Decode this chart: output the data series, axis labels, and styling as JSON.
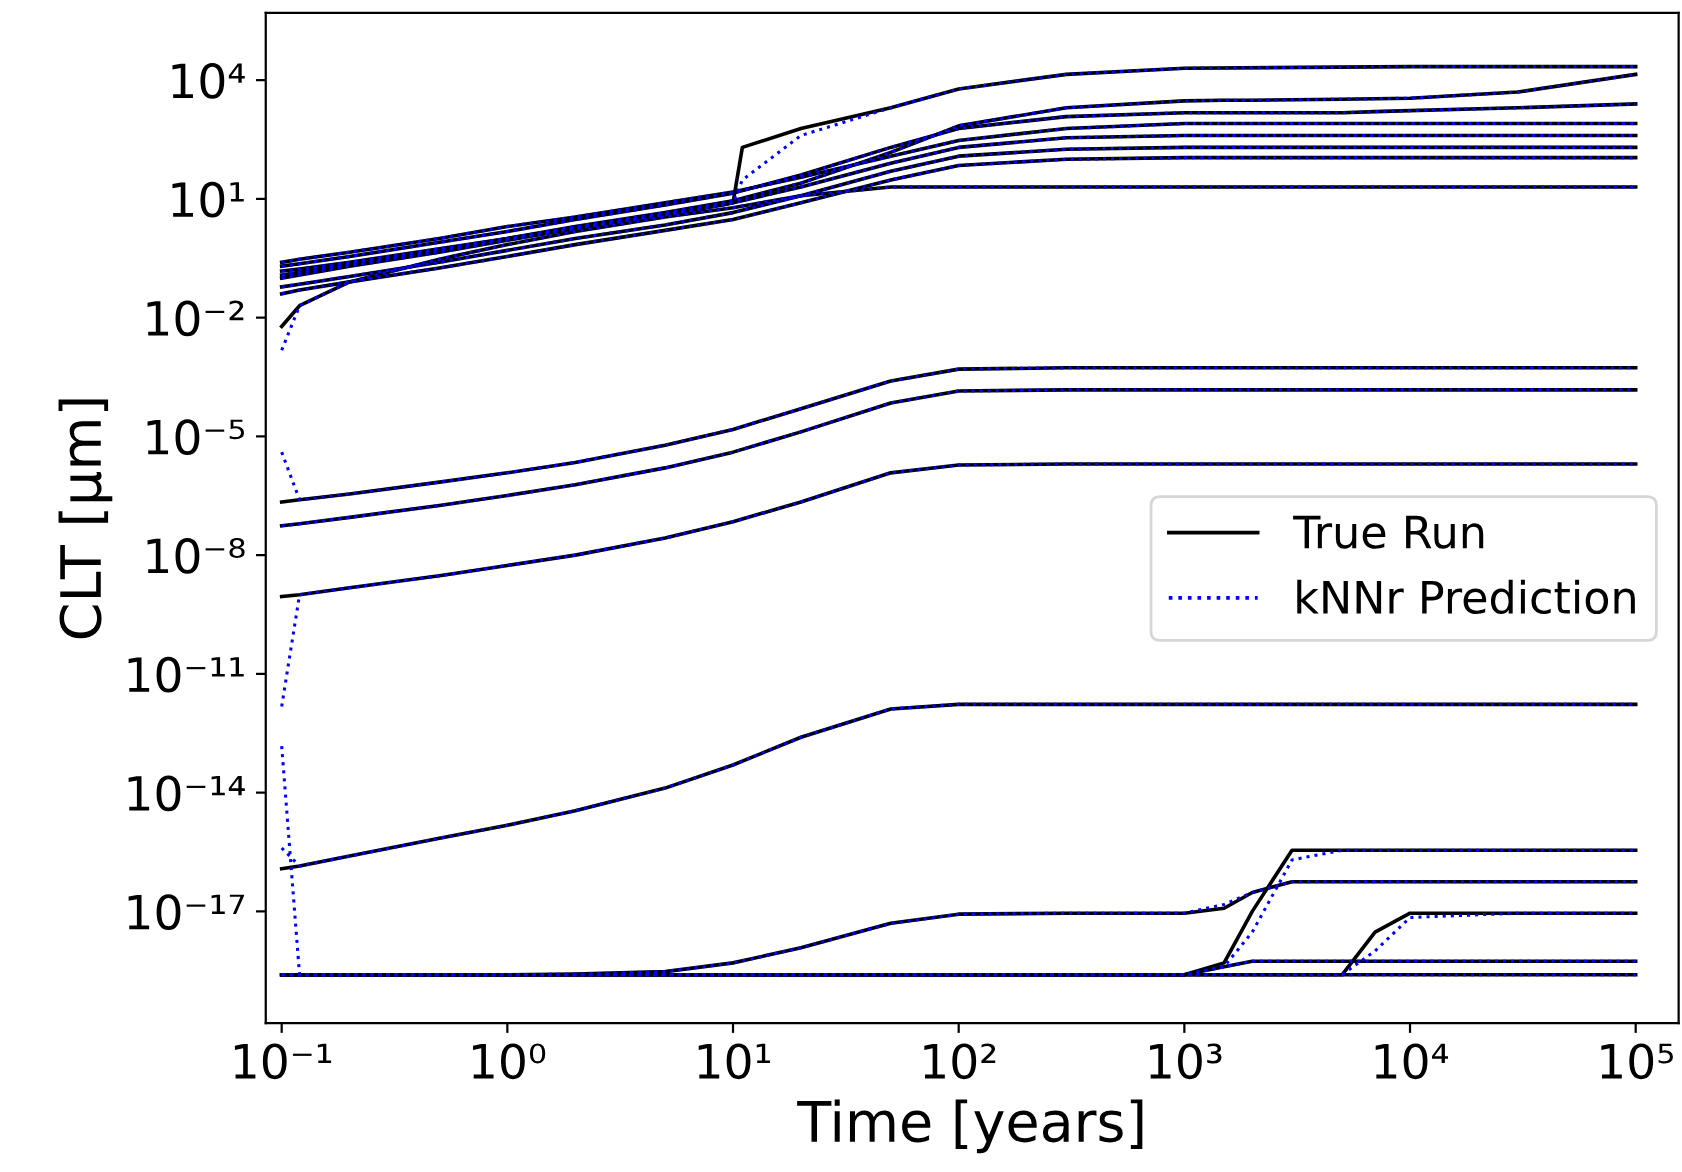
{
  "chart_data": {
    "type": "line",
    "xlabel": "Time [years]",
    "ylabel": "CLT [μm]",
    "log": "xy",
    "xlim": [
      0.085,
      155000
    ],
    "ylim": [
      1.5e-20,
      500000.0
    ],
    "xticks": [
      {
        "value": 0.1,
        "label": "10⁻¹"
      },
      {
        "value": 1,
        "label": "10⁰"
      },
      {
        "value": 10,
        "label": "10¹"
      },
      {
        "value": 100,
        "label": "10²"
      },
      {
        "value": 1000,
        "label": "10³"
      },
      {
        "value": 10000,
        "label": "10⁴"
      },
      {
        "value": 100000,
        "label": "10⁵"
      }
    ],
    "yticks": [
      {
        "value": 1e-17,
        "label": "10⁻¹⁷"
      },
      {
        "value": 1e-14,
        "label": "10⁻¹⁴"
      },
      {
        "value": 1e-11,
        "label": "10⁻¹¹"
      },
      {
        "value": 1e-08,
        "label": "10⁻⁸"
      },
      {
        "value": 1e-05,
        "label": "10⁻⁵"
      },
      {
        "value": 0.01,
        "label": "10⁻²"
      },
      {
        "value": 10,
        "label": "10¹"
      },
      {
        "value": 10000,
        "label": "10⁴"
      }
    ],
    "grid": false,
    "legend": "right",
    "marker": "none",
    "x": [
      0.1,
      0.12,
      0.2,
      0.5,
      1,
      2,
      5,
      10,
      20,
      50,
      100,
      300,
      1000,
      1500,
      2000,
      3000,
      5000,
      7000,
      10000,
      30000,
      100000
    ],
    "series": [
      {
        "name": "True Run",
        "color": "#000000",
        "line_style": "solid",
        "values": [
          0.15,
          0.17,
          0.25,
          0.55,
          1,
          2,
          4.5,
          9,
          25,
          150,
          700,
          2000,
          3000,
          3100,
          3100,
          3200,
          3300,
          3400,
          3500,
          5000,
          14000
        ]
      },
      {
        "color": "#000000",
        "line_style": "solid",
        "x": [
          0.1,
          0.2,
          0.5,
          1,
          2,
          5,
          9,
          10,
          11,
          20,
          50,
          100,
          300,
          1000,
          10000,
          100000
        ],
        "values": [
          0.1,
          0.2,
          0.45,
          0.9,
          1.8,
          4,
          7,
          8,
          200,
          600,
          2000,
          6000,
          14000,
          20000,
          22000,
          22000
        ]
      },
      {
        "color": "#000000",
        "line_style": "solid",
        "values": [
          0.006,
          0.02,
          0.08,
          0.3,
          0.7,
          1.5,
          3.5,
          6,
          12,
          20,
          20,
          20,
          20,
          20,
          20,
          20,
          20,
          20,
          20,
          20,
          20
        ]
      },
      {
        "color": "#000000",
        "line_style": "solid",
        "values": [
          0.25,
          0.3,
          0.45,
          1,
          2,
          3.5,
          8,
          15,
          35,
          120,
          300,
          600,
          800,
          800,
          800,
          800,
          800,
          800,
          800,
          800,
          800
        ]
      },
      {
        "color": "#000000",
        "line_style": "solid",
        "values": [
          0.12,
          0.14,
          0.22,
          0.5,
          1,
          1.8,
          4,
          8,
          20,
          80,
          200,
          350,
          400,
          400,
          400,
          400,
          400,
          400,
          400,
          400,
          400
        ]
      },
      {
        "color": "#000000",
        "line_style": "solid",
        "values": [
          0.06,
          0.07,
          0.11,
          0.25,
          0.5,
          1,
          2.2,
          4.5,
          12,
          50,
          120,
          180,
          200,
          200,
          200,
          200,
          200,
          200,
          200,
          200,
          200
        ]
      },
      {
        "color": "#000000",
        "line_style": "solid",
        "values": [
          0.04,
          0.05,
          0.08,
          0.18,
          0.35,
          0.7,
          1.6,
          3,
          8,
          30,
          70,
          100,
          110,
          110,
          110,
          110,
          110,
          110,
          110,
          110,
          110
        ]
      },
      {
        "color": "#000000",
        "line_style": "solid",
        "values": [
          0.2,
          0.23,
          0.35,
          0.8,
          1.5,
          3,
          7,
          14,
          40,
          200,
          600,
          1200,
          1500,
          1500,
          1500,
          1500,
          1500,
          1600,
          1700,
          2000,
          2500
        ]
      },
      {
        "color": "#000000",
        "line_style": "solid",
        "values": [
          2.2e-07,
          2.5e-07,
          3.5e-07,
          7e-07,
          1.2e-06,
          2.2e-06,
          6e-06,
          1.5e-05,
          5e-05,
          0.00025,
          0.0005,
          0.00054,
          0.00054,
          0.00054,
          0.00054,
          0.00054,
          0.00054,
          0.00054,
          0.00054,
          0.00054,
          0.00054
        ]
      },
      {
        "color": "#000000",
        "line_style": "solid",
        "values": [
          5.5e-08,
          6.2e-08,
          9e-08,
          1.8e-07,
          3.2e-07,
          6e-07,
          1.6e-06,
          4e-06,
          1.3e-05,
          7e-05,
          0.00014,
          0.00015,
          0.00015,
          0.00015,
          0.00015,
          0.00015,
          0.00015,
          0.00015,
          0.00015,
          0.00015,
          0.00015
        ]
      },
      {
        "color": "#000000",
        "line_style": "solid",
        "values": [
          9e-10,
          1e-09,
          1.5e-09,
          3e-09,
          5.5e-09,
          1e-08,
          2.7e-08,
          7e-08,
          2.2e-07,
          1.2e-06,
          1.9e-06,
          2e-06,
          2e-06,
          2e-06,
          2e-06,
          2e-06,
          2e-06,
          2e-06,
          2e-06,
          2e-06,
          2e-06
        ]
      },
      {
        "color": "#000000",
        "line_style": "solid",
        "values": [
          1.2e-16,
          1.4e-16,
          2.5e-16,
          7e-16,
          1.5e-15,
          3.5e-15,
          1.3e-14,
          5e-14,
          2.5e-13,
          1.3e-12,
          1.7e-12,
          1.7e-12,
          1.7e-12,
          1.7e-12,
          1.7e-12,
          1.7e-12,
          1.7e-12,
          1.7e-12,
          1.7e-12,
          1.7e-12,
          1.7e-12
        ]
      },
      {
        "color": "#000000",
        "line_style": "solid",
        "values": [
          2.5e-19,
          2.5e-19,
          2.5e-19,
          2.5e-19,
          2.5e-19,
          2.6e-19,
          3e-19,
          5e-19,
          1.2e-18,
          5e-18,
          8.5e-18,
          9e-18,
          9e-18,
          1.2e-17,
          3e-17,
          5.6e-17,
          5.6e-17,
          5.6e-17,
          5.6e-17,
          5.6e-17,
          5.6e-17
        ]
      },
      {
        "color": "#000000",
        "line_style": "solid",
        "values": [
          2.5e-19,
          2.5e-19,
          2.5e-19,
          2.5e-19,
          2.5e-19,
          2.5e-19,
          2.5e-19,
          2.5e-19,
          2.5e-19,
          2.5e-19,
          2.5e-19,
          2.5e-19,
          2.5e-19,
          5e-19,
          1e-17,
          3.5e-16,
          3.5e-16,
          3.5e-16,
          3.5e-16,
          3.5e-16,
          3.5e-16
        ]
      },
      {
        "color": "#000000",
        "line_style": "solid",
        "values": [
          2.5e-19,
          2.5e-19,
          2.5e-19,
          2.5e-19,
          2.5e-19,
          2.5e-19,
          2.5e-19,
          2.5e-19,
          2.5e-19,
          2.5e-19,
          2.5e-19,
          2.5e-19,
          2.5e-19,
          2.5e-19,
          2.5e-19,
          2.5e-19,
          2.5e-19,
          3e-18,
          9e-18,
          9e-18,
          9e-18
        ]
      },
      {
        "color": "#000000",
        "line_style": "solid",
        "values": [
          2.5e-19,
          2.5e-19,
          2.5e-19,
          2.5e-19,
          2.5e-19,
          2.5e-19,
          2.5e-19,
          2.5e-19,
          2.5e-19,
          2.5e-19,
          2.5e-19,
          2.5e-19,
          2.5e-19,
          4e-19,
          5.5e-19,
          5.5e-19,
          5.5e-19,
          5.5e-19,
          5.5e-19,
          5.5e-19,
          5.5e-19
        ]
      },
      {
        "color": "#000000",
        "line_style": "solid",
        "values": [
          2.5e-19,
          2.5e-19,
          2.5e-19,
          2.5e-19,
          2.5e-19,
          2.5e-19,
          2.5e-19,
          2.5e-19,
          2.5e-19,
          2.5e-19,
          2.5e-19,
          2.5e-19,
          2.5e-19,
          2.5e-19,
          2.5e-19,
          2.5e-19,
          2.5e-19,
          2.5e-19,
          2.5e-19,
          2.5e-19,
          2.5e-19
        ]
      },
      {
        "name": "kNNr Prediction",
        "color": "#0000ff",
        "line_style": "dotted",
        "values": [
          0.15,
          0.17,
          0.25,
          0.55,
          1,
          2,
          4.5,
          9,
          25,
          150,
          700,
          2000,
          3000,
          3100,
          3100,
          3200,
          3300,
          3400,
          3500,
          5000,
          14000
        ]
      },
      {
        "color": "#0000ff",
        "line_style": "dotted",
        "x": [
          0.1,
          0.2,
          0.5,
          1,
          2,
          5,
          9,
          10,
          11,
          20,
          50,
          100,
          300,
          1000,
          10000,
          100000
        ],
        "values": [
          0.1,
          0.2,
          0.45,
          0.9,
          1.8,
          4,
          7,
          8,
          30,
          400,
          2000,
          6000,
          14000,
          20000,
          22000,
          22000
        ]
      },
      {
        "color": "#0000ff",
        "line_style": "dotted",
        "values": [
          0.0015,
          0.02,
          0.08,
          0.3,
          0.7,
          1.5,
          3.5,
          6,
          12,
          20,
          20,
          20,
          20,
          20,
          20,
          20,
          20,
          20,
          20,
          20,
          20
        ]
      },
      {
        "color": "#0000ff",
        "line_style": "dotted",
        "values": [
          0.25,
          0.3,
          0.45,
          1,
          2,
          3.5,
          8,
          15,
          35,
          120,
          300,
          600,
          800,
          800,
          800,
          800,
          800,
          800,
          800,
          800,
          800
        ]
      },
      {
        "color": "#0000ff",
        "line_style": "dotted",
        "values": [
          0.12,
          0.14,
          0.22,
          0.5,
          1,
          1.8,
          4,
          8,
          20,
          80,
          200,
          350,
          400,
          400,
          400,
          400,
          400,
          400,
          400,
          400,
          400
        ]
      },
      {
        "color": "#0000ff",
        "line_style": "dotted",
        "values": [
          0.06,
          0.07,
          0.11,
          0.25,
          0.5,
          1,
          2.2,
          4.5,
          12,
          50,
          120,
          180,
          200,
          200,
          200,
          200,
          200,
          200,
          200,
          200,
          200
        ]
      },
      {
        "color": "#0000ff",
        "line_style": "dotted",
        "values": [
          0.04,
          0.05,
          0.08,
          0.18,
          0.35,
          0.7,
          1.6,
          3,
          8,
          30,
          70,
          100,
          110,
          110,
          110,
          110,
          110,
          110,
          110,
          110,
          110
        ]
      },
      {
        "color": "#0000ff",
        "line_style": "dotted",
        "values": [
          0.2,
          0.23,
          0.35,
          0.8,
          1.5,
          3,
          7,
          14,
          40,
          200,
          600,
          1200,
          1500,
          1500,
          1500,
          1500,
          1500,
          1600,
          1700,
          2000,
          2500
        ]
      },
      {
        "color": "#0000ff",
        "line_style": "dotted",
        "values": [
          4e-06,
          2.5e-07,
          3.5e-07,
          7e-07,
          1.2e-06,
          2.2e-06,
          6e-06,
          1.5e-05,
          5e-05,
          0.00025,
          0.0005,
          0.00054,
          0.00054,
          0.00054,
          0.00054,
          0.00054,
          0.00054,
          0.00054,
          0.00054,
          0.00054,
          0.00054
        ]
      },
      {
        "color": "#0000ff",
        "line_style": "dotted",
        "values": [
          5.5e-08,
          6.2e-08,
          9e-08,
          1.8e-07,
          3.2e-07,
          6e-07,
          1.6e-06,
          4e-06,
          1.3e-05,
          7e-05,
          0.00014,
          0.00015,
          0.00015,
          0.00015,
          0.00015,
          0.00015,
          0.00015,
          0.00015,
          0.00015,
          0.00015,
          0.00015
        ]
      },
      {
        "color": "#0000ff",
        "line_style": "dotted",
        "values": [
          1.5e-12,
          1e-09,
          1.5e-09,
          3e-09,
          5.5e-09,
          1e-08,
          2.7e-08,
          7e-08,
          2.2e-07,
          1.2e-06,
          1.9e-06,
          2e-06,
          2e-06,
          2e-06,
          2e-06,
          2e-06,
          2e-06,
          2e-06,
          2e-06,
          2e-06,
          2e-06
        ]
      },
      {
        "color": "#0000ff",
        "line_style": "dotted",
        "values": [
          4e-16,
          1.4e-16,
          2.5e-16,
          7e-16,
          1.5e-15,
          3.5e-15,
          1.3e-14,
          5e-14,
          2.5e-13,
          1.3e-12,
          1.7e-12,
          1.7e-12,
          1.7e-12,
          1.7e-12,
          1.7e-12,
          1.7e-12,
          1.7e-12,
          1.7e-12,
          1.7e-12,
          1.7e-12,
          1.7e-12
        ]
      },
      {
        "color": "#0000ff",
        "line_style": "dotted",
        "values": [
          2.5e-19,
          2.5e-19,
          2.5e-19,
          2.5e-19,
          2.5e-19,
          2.6e-19,
          3e-19,
          5e-19,
          1.2e-18,
          5e-18,
          8.5e-18,
          9e-18,
          9e-18,
          1.5e-17,
          3e-17,
          5.6e-17,
          5.6e-17,
          5.6e-17,
          5.6e-17,
          5.6e-17,
          5.6e-17
        ]
      },
      {
        "color": "#0000ff",
        "line_style": "dotted",
        "values": [
          2.5e-19,
          2.5e-19,
          2.5e-19,
          2.5e-19,
          2.5e-19,
          2.5e-19,
          2.5e-19,
          2.5e-19,
          2.5e-19,
          2.5e-19,
          2.5e-19,
          2.5e-19,
          2.5e-19,
          4e-19,
          3e-18,
          2e-16,
          3.5e-16,
          3.5e-16,
          3.5e-16,
          3.5e-16,
          3.5e-16
        ]
      },
      {
        "color": "#0000ff",
        "line_style": "dotted",
        "values": [
          2.5e-19,
          2.5e-19,
          2.5e-19,
          2.5e-19,
          2.5e-19,
          2.5e-19,
          2.5e-19,
          2.5e-19,
          2.5e-19,
          2.5e-19,
          2.5e-19,
          2.5e-19,
          2.5e-19,
          2.5e-19,
          2.5e-19,
          2.5e-19,
          2.5e-19,
          1e-18,
          7e-18,
          9e-18,
          9e-18
        ]
      },
      {
        "color": "#0000ff",
        "line_style": "dotted",
        "values": [
          2.5e-19,
          2.5e-19,
          2.5e-19,
          2.5e-19,
          2.5e-19,
          2.5e-19,
          2.5e-19,
          2.5e-19,
          2.5e-19,
          2.5e-19,
          2.5e-19,
          2.5e-19,
          2.5e-19,
          4e-19,
          5.5e-19,
          5.5e-19,
          5.5e-19,
          5.5e-19,
          5.5e-19,
          5.5e-19,
          5.5e-19
        ]
      },
      {
        "color": "#0000ff",
        "line_style": "dotted",
        "values": [
          1.5e-13,
          2.5e-19,
          2.5e-19,
          2.5e-19,
          2.5e-19,
          2.5e-19,
          2.5e-19,
          2.5e-19,
          2.5e-19,
          2.5e-19,
          2.5e-19,
          2.5e-19,
          2.5e-19,
          2.5e-19,
          2.5e-19,
          2.5e-19,
          2.5e-19,
          2.5e-19,
          2.5e-19,
          2.5e-19,
          2.5e-19
        ]
      }
    ]
  }
}
